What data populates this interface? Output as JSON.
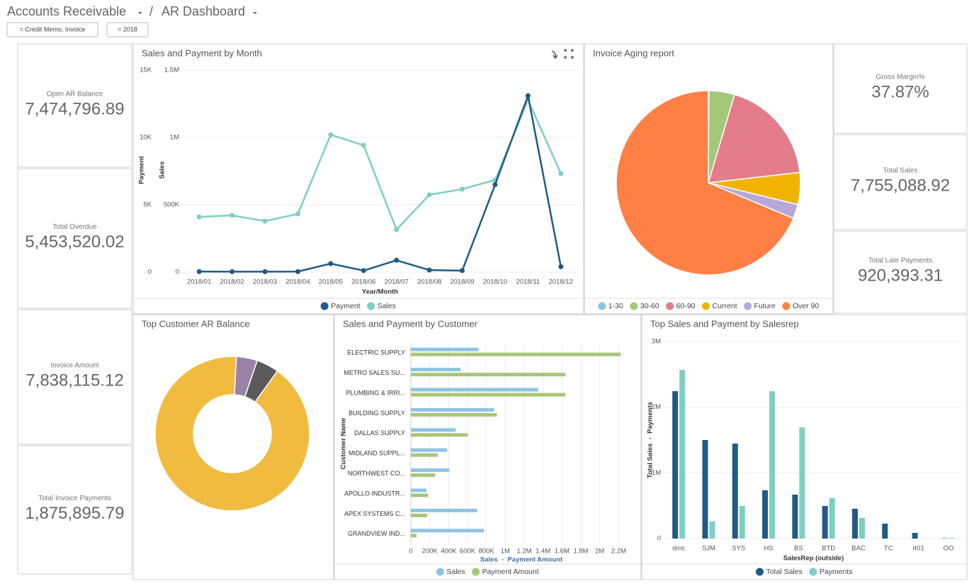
{
  "header": {
    "breadcrumb": [
      "Accounts Receivable",
      "AR Dashboard"
    ],
    "separator": "/",
    "filters": [
      "= Credit Memo, Invoice",
      "= 2018"
    ]
  },
  "kpis": [
    {
      "label": "Open AR Balance",
      "value": "7,474,796.89"
    },
    {
      "label": "Total Overdue",
      "value": "5,453,520.02"
    },
    {
      "label": "Invoice Amount",
      "value": "7,838,115.12"
    },
    {
      "label": "Total Invoice Payments",
      "value": "1,875,895.79"
    },
    {
      "label": "Gross Margin%",
      "value": "37.87%"
    },
    {
      "label": "Total Sales",
      "value": "7,755,088.92"
    },
    {
      "label": "Total Late Payments",
      "value": "920,393.31"
    }
  ],
  "chart_data": [
    {
      "type": "line",
      "title": "Sales and Payment by Month",
      "x_label": "Year/Month",
      "y_label": "Payment",
      "y2_label": "Sales",
      "categories": [
        "2018/01",
        "2018/02",
        "2018/03",
        "2018/04",
        "2018/05",
        "2018/06",
        "2018/07",
        "2018/08",
        "2018/09",
        "2018/10",
        "2018/11",
        "2018/12"
      ],
      "series": [
        {
          "name": "Payment",
          "color": "#1f5b85",
          "values": [
            40,
            30,
            30,
            40,
            630,
            110,
            880,
            150,
            110,
            6500,
            13100,
            400
          ]
        },
        {
          "name": "Sales",
          "color": "#7ecfc1",
          "axis": "y2",
          "values": [
            410000,
            421000,
            379000,
            432000,
            1020000,
            942000,
            316000,
            574000,
            616000,
            684000,
            1279000,
            732000
          ]
        }
      ],
      "ylim": [
        0,
        15000
      ],
      "yticks": [
        0,
        {
          "value": 5000,
          "label": "5K"
        },
        {
          "value": 10000,
          "label": "10K"
        },
        {
          "value": 15000,
          "label": "15K"
        }
      ],
      "y2lim": [
        0,
        1500000
      ],
      "y2ticks": [
        0,
        {
          "value": 500000,
          "label": "500K"
        },
        {
          "value": 1000000,
          "label": "1M"
        },
        {
          "value": 1500000,
          "label": "1.5M"
        }
      ],
      "grid": true,
      "legend": "bottom"
    },
    {
      "type": "pie",
      "title": "Invoice Aging report",
      "categories": [
        "1-30",
        "30-60",
        "60-90",
        "Current",
        "Future",
        "Over 90"
      ],
      "values": [
        0.1,
        4.5,
        18.6,
        5.6,
        2.5,
        68.7
      ],
      "colors": [
        "#8fc4e3",
        "#a5c878",
        "#e47c8c",
        "#f0b400",
        "#b8a7d8",
        "#ff7f45"
      ],
      "legend": "bottom"
    },
    {
      "type": "donut",
      "title": "Top Customer AR Balance",
      "values": [
        4.4,
        4.7,
        90.9
      ],
      "colors": [
        "#9b82a8",
        "#5b5b5b",
        "#f1bb3f"
      ]
    },
    {
      "type": "hbar",
      "title": "Sales and Payment by Customer",
      "x_label": "Sales  -  Payment Amount",
      "y_label": "Customer Name",
      "categories": [
        "ELECTRIC SUPPLY",
        "METRO SALES SU...",
        "PLUMBING & IRRI...",
        "BUILDING SUPPLY",
        "DALLAS SUPPLY",
        "MIDLAND SUPPL...",
        "NORTHWEST CO...",
        "APOLLO INDUSTR...",
        "APEX SYSTEMS C...",
        "GRANDVIEW IND..."
      ],
      "series": [
        {
          "name": "Sales",
          "color": "#8fc4e3",
          "values": [
            716000,
            527000,
            1349000,
            882000,
            475000,
            384000,
            407000,
            166000,
            701000,
            776000
          ]
        },
        {
          "name": "Payment Amount",
          "color": "#a5c878",
          "values": [
            2223000,
            1635000,
            1635000,
            912000,
            603000,
            286000,
            256000,
            181000,
            173000,
            60000
          ]
        }
      ],
      "xlim": [
        0,
        2400000
      ],
      "xticks": [
        0,
        {
          "value": 200000,
          "label": "200K"
        },
        {
          "value": 400000,
          "label": "400K"
        },
        {
          "value": 600000,
          "label": "600K"
        },
        {
          "value": 800000,
          "label": "800K"
        },
        {
          "value": 1000000,
          "label": "1M"
        },
        {
          "value": 1200000,
          "label": "1.2M"
        },
        {
          "value": 1400000,
          "label": "1.4M"
        },
        {
          "value": 1600000,
          "label": "1.6M"
        },
        {
          "value": 1800000,
          "label": "1.8M"
        },
        {
          "value": 2000000,
          "label": "2M"
        },
        {
          "value": 2200000,
          "label": "2.2M"
        }
      ],
      "grid": true,
      "legend": "bottom"
    },
    {
      "type": "bar",
      "title": "Top Sales and Payment by Salesrep",
      "x_label": "SalesRep (outside)",
      "y_label": "Total Sales  -  Payments",
      "categories": [
        "dmc",
        "SJM",
        "SYS",
        "HS",
        "BS",
        "BTD",
        "BAC",
        "TC",
        "rt01",
        "OO"
      ],
      "series": [
        {
          "name": "Total Sales",
          "color": "#1f5b85",
          "values": [
            2244000,
            1500000,
            1446000,
            734000,
            669000,
            496000,
            453000,
            227000,
            86000,
            5000
          ]
        },
        {
          "name": "Payments",
          "color": "#7ecfc1",
          "values": [
            2567000,
            259000,
            496000,
            2244000,
            1694000,
            615000,
            313000,
            0,
            0,
            10000
          ]
        }
      ],
      "ylim": [
        0,
        3000000
      ],
      "yticks": [
        0,
        {
          "value": 1000000,
          "label": "1M"
        },
        {
          "value": 2000000,
          "label": "2M"
        },
        {
          "value": 3000000,
          "label": "3M"
        }
      ],
      "grid": true,
      "legend": "bottom"
    }
  ]
}
